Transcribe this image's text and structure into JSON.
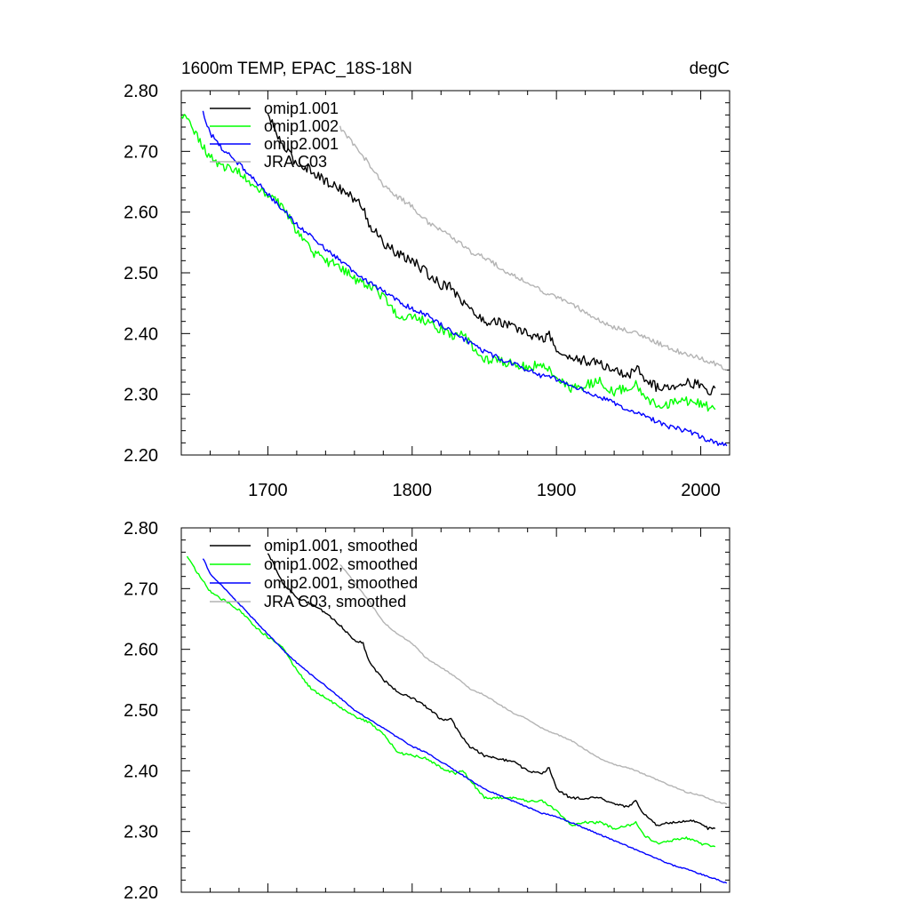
{
  "header": {
    "left_title": "1600m TEMP, EPAC_18S-18N",
    "right_title": "degC"
  },
  "chart_data": [
    {
      "type": "line",
      "title": "1600m TEMP, EPAC_18S-18N",
      "units": "degC",
      "xlim": [
        1640,
        2020
      ],
      "ylim": [
        2.2,
        2.8
      ],
      "xticks": [
        "1700",
        "1800",
        "1900",
        "2000"
      ],
      "yticks": [
        "2.20",
        "2.30",
        "2.40",
        "2.50",
        "2.60",
        "2.70",
        "2.80"
      ],
      "legend_position": "top-left",
      "series": [
        {
          "name": "omip1.001",
          "color": "#000000",
          "noise": 0.008,
          "x": [
            1700,
            1710,
            1720,
            1730,
            1740,
            1750,
            1760,
            1766,
            1770,
            1780,
            1790,
            1800,
            1810,
            1820,
            1827,
            1832,
            1840,
            1850,
            1860,
            1870,
            1880,
            1890,
            1895,
            1900,
            1910,
            1920,
            1930,
            1940,
            1950,
            1955,
            1960,
            1970,
            1980,
            1990,
            2000,
            2005,
            2010
          ],
          "y": [
            2.76,
            2.71,
            2.68,
            2.67,
            2.65,
            2.64,
            2.62,
            2.61,
            2.58,
            2.55,
            2.53,
            2.52,
            2.5,
            2.48,
            2.48,
            2.46,
            2.44,
            2.42,
            2.42,
            2.41,
            2.4,
            2.39,
            2.4,
            2.37,
            2.36,
            2.355,
            2.35,
            2.34,
            2.33,
            2.345,
            2.33,
            2.31,
            2.315,
            2.32,
            2.315,
            2.305,
            2.31
          ]
        },
        {
          "name": "omip1.002",
          "color": "#00ff00",
          "noise": 0.008,
          "x": [
            1640,
            1645,
            1650,
            1660,
            1670,
            1680,
            1690,
            1700,
            1710,
            1720,
            1730,
            1740,
            1750,
            1760,
            1770,
            1780,
            1790,
            1800,
            1810,
            1820,
            1830,
            1835,
            1840,
            1850,
            1860,
            1870,
            1880,
            1890,
            1900,
            1910,
            1920,
            1930,
            1940,
            1950,
            1955,
            1960,
            1970,
            1980,
            1990,
            2000,
            2010
          ],
          "y": [
            2.755,
            2.76,
            2.73,
            2.69,
            2.675,
            2.665,
            2.645,
            2.625,
            2.61,
            2.57,
            2.535,
            2.52,
            2.51,
            2.49,
            2.48,
            2.46,
            2.43,
            2.425,
            2.42,
            2.405,
            2.395,
            2.4,
            2.385,
            2.355,
            2.355,
            2.35,
            2.345,
            2.35,
            2.33,
            2.31,
            2.315,
            2.32,
            2.305,
            2.31,
            2.32,
            2.3,
            2.28,
            2.285,
            2.29,
            2.285,
            2.275
          ]
        },
        {
          "name": "omip2.001",
          "color": "#0000ff",
          "noise": 0.004,
          "x": [
            1655,
            1660,
            1670,
            1680,
            1690,
            1700,
            1710,
            1720,
            1730,
            1740,
            1750,
            1760,
            1770,
            1780,
            1790,
            1800,
            1810,
            1820,
            1830,
            1840,
            1850,
            1860,
            1870,
            1880,
            1890,
            1900,
            1910,
            1920,
            1930,
            1940,
            1950,
            1960,
            1970,
            1980,
            1990,
            2000,
            2010,
            2018
          ],
          "y": [
            2.765,
            2.73,
            2.7,
            2.68,
            2.655,
            2.63,
            2.605,
            2.58,
            2.56,
            2.54,
            2.52,
            2.5,
            2.485,
            2.47,
            2.455,
            2.44,
            2.43,
            2.415,
            2.4,
            2.385,
            2.37,
            2.36,
            2.35,
            2.34,
            2.33,
            2.325,
            2.315,
            2.305,
            2.295,
            2.285,
            2.275,
            2.265,
            2.255,
            2.245,
            2.24,
            2.23,
            2.22,
            2.215
          ]
        },
        {
          "name": "JRA C03",
          "color": "#b4b4b4",
          "noise": 0.004,
          "x": [
            1750,
            1760,
            1770,
            1780,
            1790,
            1800,
            1810,
            1820,
            1830,
            1840,
            1850,
            1860,
            1870,
            1880,
            1890,
            1900,
            1910,
            1920,
            1930,
            1940,
            1950,
            1960,
            1970,
            1980,
            1990,
            2000,
            2010,
            2018
          ],
          "y": [
            2.74,
            2.71,
            2.68,
            2.645,
            2.625,
            2.61,
            2.585,
            2.57,
            2.555,
            2.535,
            2.525,
            2.51,
            2.495,
            2.485,
            2.47,
            2.46,
            2.45,
            2.435,
            2.42,
            2.41,
            2.405,
            2.395,
            2.385,
            2.375,
            2.365,
            2.36,
            2.35,
            2.34
          ]
        }
      ]
    },
    {
      "type": "line",
      "xlim": [
        1640,
        2020
      ],
      "ylim": [
        2.2,
        2.8
      ],
      "xticks": [],
      "yticks": [
        "2.20",
        "2.30",
        "2.40",
        "2.50",
        "2.60",
        "2.70",
        "2.80"
      ],
      "legend_position": "top-left",
      "series": [
        {
          "name": "omip1.001, smoothed",
          "color": "#000000",
          "noise": 0.002,
          "x": [
            1700,
            1710,
            1720,
            1730,
            1740,
            1750,
            1760,
            1766,
            1770,
            1780,
            1790,
            1800,
            1810,
            1820,
            1827,
            1832,
            1840,
            1850,
            1860,
            1870,
            1880,
            1890,
            1895,
            1900,
            1910,
            1920,
            1930,
            1940,
            1950,
            1955,
            1960,
            1970,
            1980,
            1990,
            2000,
            2005,
            2010
          ],
          "y": [
            2.76,
            2.71,
            2.685,
            2.675,
            2.66,
            2.64,
            2.615,
            2.61,
            2.58,
            2.55,
            2.53,
            2.52,
            2.505,
            2.485,
            2.485,
            2.465,
            2.44,
            2.425,
            2.42,
            2.415,
            2.4,
            2.395,
            2.405,
            2.37,
            2.355,
            2.355,
            2.355,
            2.345,
            2.34,
            2.35,
            2.33,
            2.31,
            2.315,
            2.318,
            2.315,
            2.305,
            2.305
          ]
        },
        {
          "name": "omip1.002, smoothed",
          "color": "#00ff00",
          "noise": 0.002,
          "x": [
            1644,
            1650,
            1660,
            1670,
            1680,
            1690,
            1700,
            1710,
            1720,
            1730,
            1740,
            1750,
            1760,
            1770,
            1780,
            1790,
            1800,
            1810,
            1820,
            1830,
            1835,
            1840,
            1850,
            1860,
            1870,
            1880,
            1890,
            1900,
            1910,
            1920,
            1930,
            1940,
            1950,
            1955,
            1960,
            1970,
            1980,
            1990,
            2000,
            2010
          ],
          "y": [
            2.755,
            2.73,
            2.695,
            2.68,
            2.665,
            2.64,
            2.62,
            2.605,
            2.565,
            2.535,
            2.52,
            2.505,
            2.49,
            2.48,
            2.46,
            2.43,
            2.425,
            2.42,
            2.405,
            2.395,
            2.4,
            2.385,
            2.355,
            2.355,
            2.355,
            2.35,
            2.35,
            2.335,
            2.31,
            2.315,
            2.315,
            2.305,
            2.31,
            2.315,
            2.295,
            2.28,
            2.285,
            2.29,
            2.28,
            2.275
          ]
        },
        {
          "name": "omip2.001, smoothed",
          "color": "#0000ff",
          "noise": 0.001,
          "x": [
            1655,
            1660,
            1670,
            1680,
            1690,
            1700,
            1710,
            1720,
            1730,
            1740,
            1750,
            1760,
            1770,
            1780,
            1790,
            1800,
            1810,
            1820,
            1830,
            1840,
            1850,
            1860,
            1870,
            1880,
            1890,
            1900,
            1910,
            1920,
            1930,
            1940,
            1950,
            1960,
            1970,
            1980,
            1990,
            2000,
            2010,
            2018
          ],
          "y": [
            2.75,
            2.725,
            2.7,
            2.675,
            2.65,
            2.625,
            2.6,
            2.578,
            2.558,
            2.54,
            2.52,
            2.5,
            2.485,
            2.47,
            2.455,
            2.44,
            2.43,
            2.415,
            2.4,
            2.385,
            2.37,
            2.36,
            2.35,
            2.34,
            2.33,
            2.325,
            2.315,
            2.305,
            2.295,
            2.285,
            2.275,
            2.265,
            2.255,
            2.245,
            2.238,
            2.23,
            2.222,
            2.215
          ]
        },
        {
          "name": "JRA C03, smoothed",
          "color": "#b4b4b4",
          "noise": 0.001,
          "x": [
            1750,
            1760,
            1770,
            1780,
            1790,
            1800,
            1810,
            1820,
            1830,
            1840,
            1850,
            1860,
            1870,
            1880,
            1890,
            1900,
            1910,
            1920,
            1930,
            1940,
            1950,
            1960,
            1970,
            1980,
            1990,
            2000,
            2010,
            2018
          ],
          "y": [
            2.74,
            2.71,
            2.68,
            2.645,
            2.625,
            2.61,
            2.585,
            2.57,
            2.555,
            2.535,
            2.525,
            2.51,
            2.495,
            2.485,
            2.47,
            2.46,
            2.45,
            2.435,
            2.42,
            2.41,
            2.405,
            2.395,
            2.385,
            2.375,
            2.365,
            2.36,
            2.35,
            2.345
          ]
        }
      ]
    }
  ]
}
